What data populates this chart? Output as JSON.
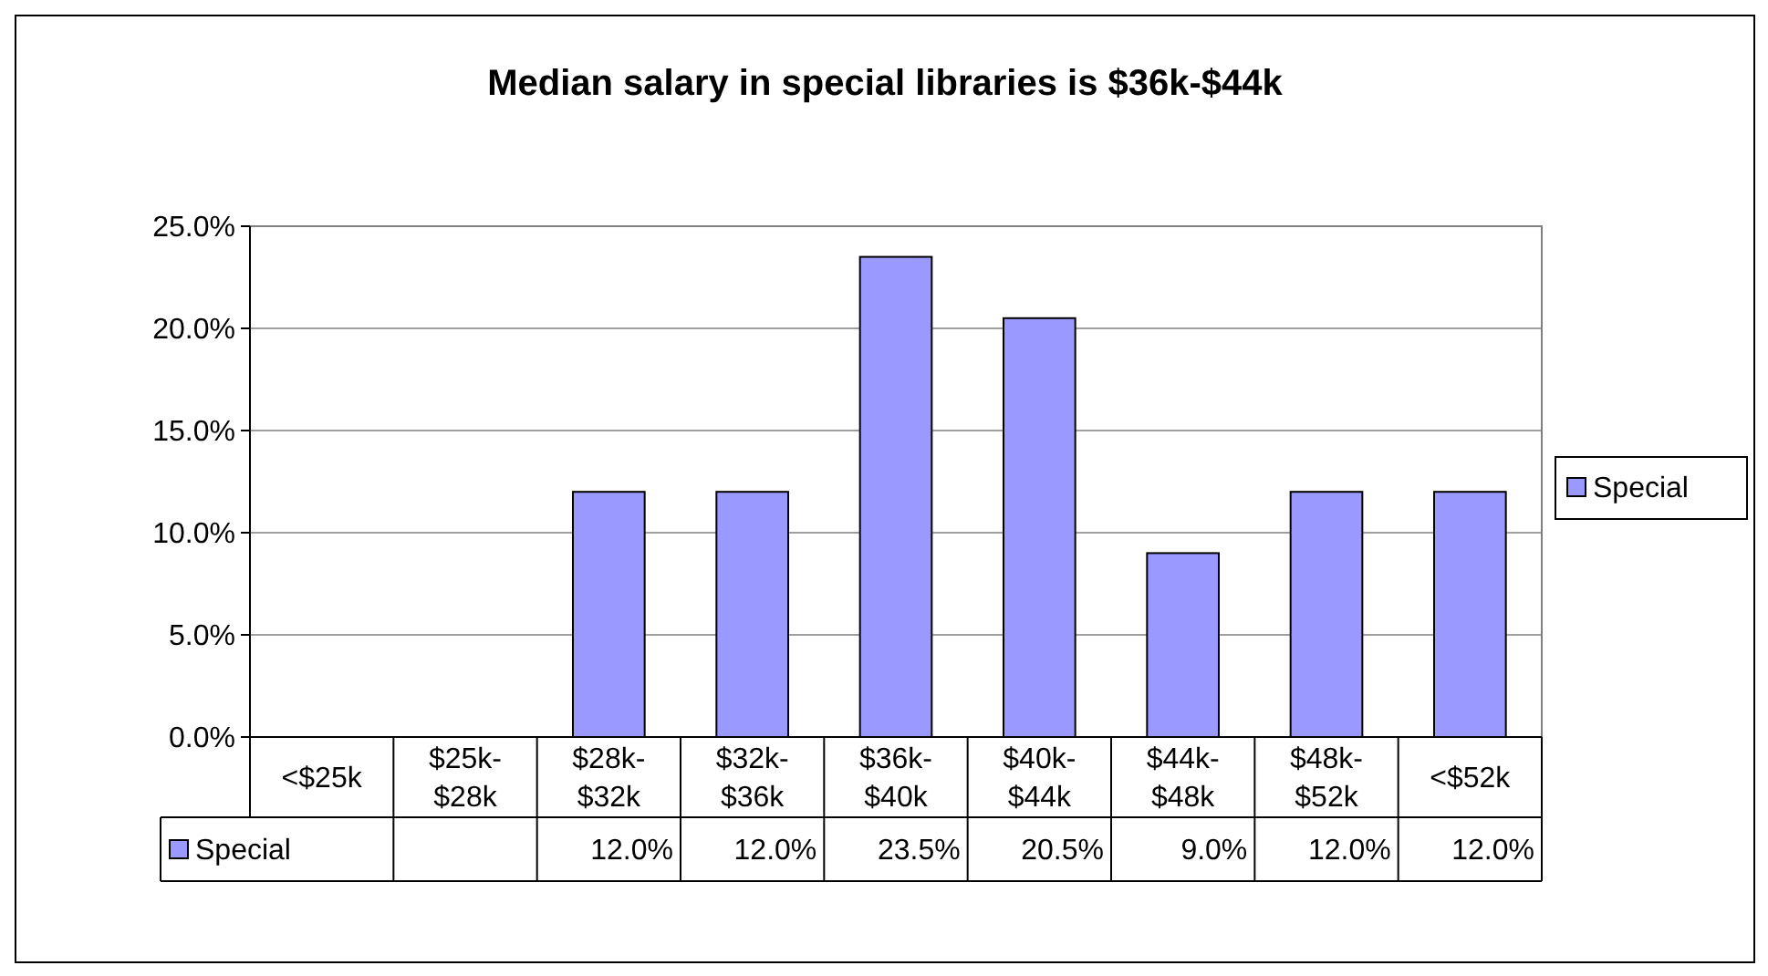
{
  "chart_data": {
    "type": "bar",
    "title": "Median salary in special libraries is $36k-$44k",
    "categories": [
      "<$25k",
      "$25k-$28k",
      "$28k-$32k",
      "$32k-$36k",
      "$36k-$40k",
      "$40k-$44k",
      "$44k-$48k",
      "$48k-$52k",
      "<$52k"
    ],
    "series": [
      {
        "name": "Special",
        "color": "#9999ff",
        "values": [
          null,
          null,
          12.0,
          12.0,
          23.5,
          20.5,
          9.0,
          12.0,
          12.0
        ],
        "value_labels": [
          null,
          null,
          "12.0%",
          "12.0%",
          "23.5%",
          "20.5%",
          "9.0%",
          "12.0%",
          "12.0%"
        ]
      }
    ],
    "ylim": [
      0,
      25
    ],
    "yticks": [
      {
        "value": 0,
        "label": "0.0%"
      },
      {
        "value": 5,
        "label": "5.0%"
      },
      {
        "value": 10,
        "label": "10.0%"
      },
      {
        "value": 15,
        "label": "15.0%"
      },
      {
        "value": 20,
        "label": "20.0%"
      },
      {
        "value": 25,
        "label": "25.0%"
      }
    ],
    "grid": "y",
    "legend": "right"
  }
}
